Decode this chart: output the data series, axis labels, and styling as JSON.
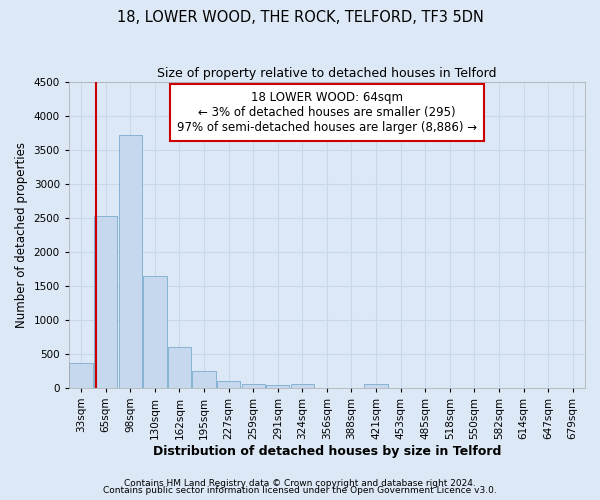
{
  "title": "18, LOWER WOOD, THE ROCK, TELFORD, TF3 5DN",
  "subtitle": "Size of property relative to detached houses in Telford",
  "xlabel": "Distribution of detached houses by size in Telford",
  "ylabel": "Number of detached properties",
  "footer_line1": "Contains HM Land Registry data © Crown copyright and database right 2024.",
  "footer_line2": "Contains public sector information licensed under the Open Government Licence v3.0.",
  "categories": [
    "33sqm",
    "65sqm",
    "98sqm",
    "130sqm",
    "162sqm",
    "195sqm",
    "227sqm",
    "259sqm",
    "291sqm",
    "324sqm",
    "356sqm",
    "388sqm",
    "421sqm",
    "453sqm",
    "485sqm",
    "518sqm",
    "550sqm",
    "582sqm",
    "614sqm",
    "647sqm",
    "679sqm"
  ],
  "values": [
    370,
    2520,
    3720,
    1640,
    600,
    240,
    100,
    60,
    45,
    50,
    0,
    0,
    60,
    0,
    0,
    0,
    0,
    0,
    0,
    0,
    0
  ],
  "bar_color": "#c5d8ee",
  "bar_edge_color": "#7aabcc",
  "grid_color": "#c8d8ea",
  "annotation_text": "18 LOWER WOOD: 64sqm\n← 3% of detached houses are smaller (295)\n97% of semi-detached houses are larger (8,886) →",
  "annotation_box_facecolor": "#ffffff",
  "annotation_box_edge_color": "#cc0000",
  "vline_color": "#cc0000",
  "vline_x": 0.6,
  "ylim": [
    0,
    4500
  ],
  "yticks": [
    0,
    500,
    1000,
    1500,
    2000,
    2500,
    3000,
    3500,
    4000,
    4500
  ],
  "fig_bg_color": "#dce8f5",
  "plot_bg_color": "#dce8f5",
  "title_fontsize": 10.5,
  "subtitle_fontsize": 9,
  "xlabel_fontsize": 9,
  "ylabel_fontsize": 8.5,
  "tick_fontsize": 7.5,
  "annot_fontsize": 8.5,
  "footer_fontsize": 6.5
}
